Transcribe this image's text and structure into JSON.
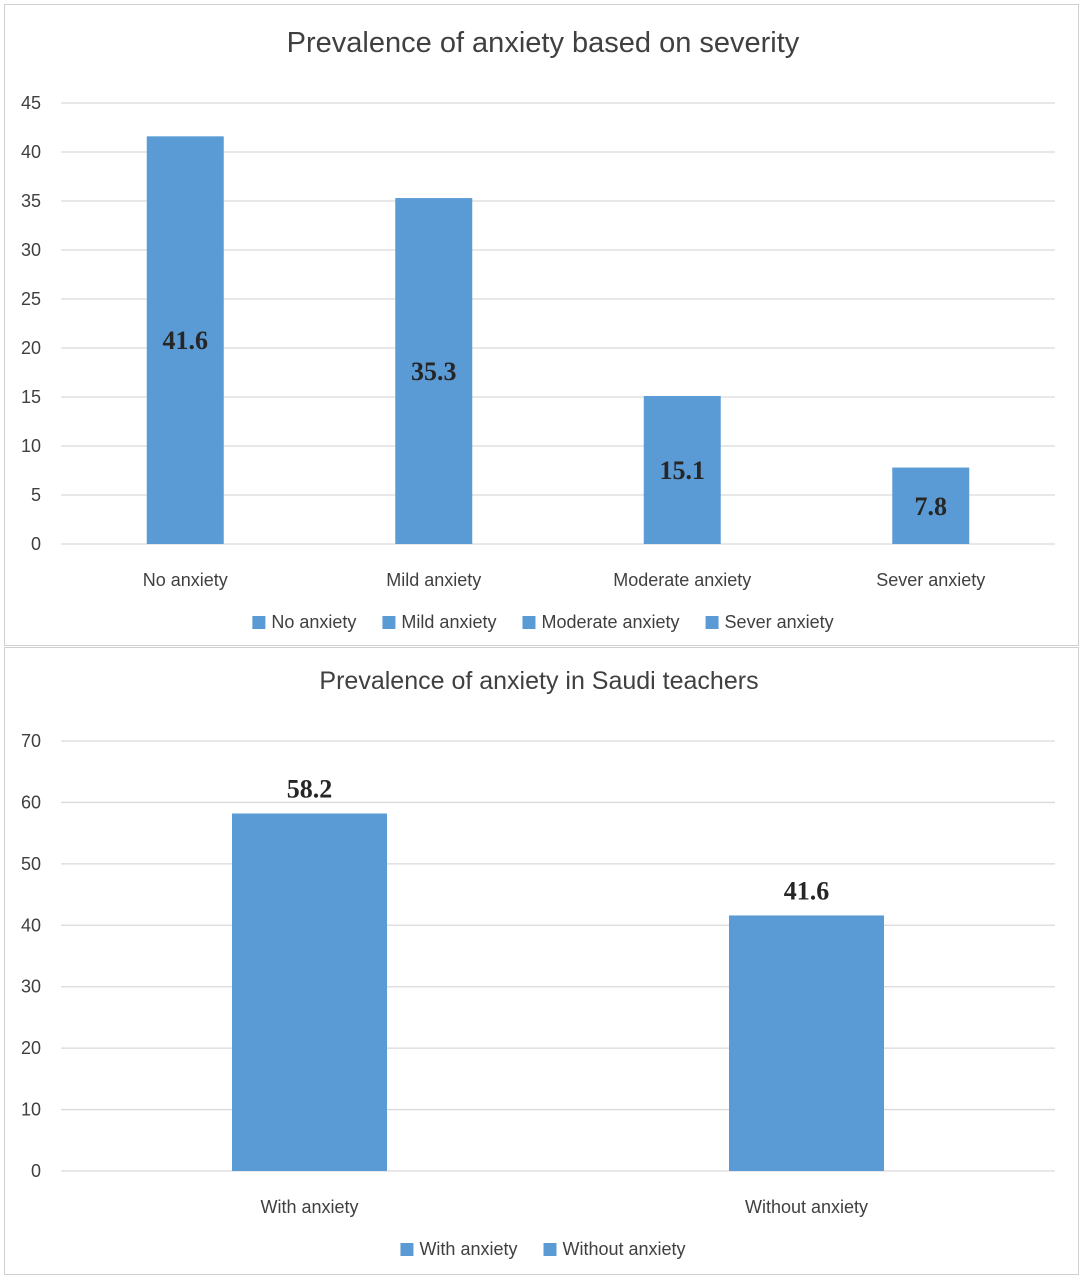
{
  "chart_data": [
    {
      "type": "bar",
      "title": "Prevalence of anxiety based on severity",
      "categories": [
        "No anxiety",
        "Mild anxiety",
        "Moderate anxiety",
        "Sever anxiety"
      ],
      "values": [
        41.6,
        35.3,
        15.1,
        7.8
      ],
      "data_labels": [
        "41.6",
        "35.3",
        "15.1",
        "7.8"
      ],
      "yticks": [
        "0",
        "5",
        "10",
        "15",
        "20",
        "25",
        "30",
        "35",
        "40",
        "45"
      ],
      "ylim": [
        0,
        45
      ],
      "label_position": "inside",
      "legend": [
        "No anxiety",
        "Mild anxiety",
        "Moderate anxiety",
        "Sever anxiety"
      ],
      "legend_position": "bottom",
      "grid": true,
      "bar_color": "#5b9bd5"
    },
    {
      "type": "bar",
      "title": "Prevalence of anxiety in Saudi teachers",
      "categories": [
        "With anxiety",
        "Without anxiety"
      ],
      "values": [
        58.2,
        41.6
      ],
      "data_labels": [
        "58.2",
        "41.6"
      ],
      "yticks": [
        "0",
        "10",
        "20",
        "30",
        "40",
        "50",
        "60",
        "70"
      ],
      "ylim": [
        0,
        70
      ],
      "label_position": "above",
      "legend": [
        "With anxiety",
        "Without anxiety"
      ],
      "legend_position": "bottom",
      "grid": true,
      "bar_color": "#5b9bd5"
    }
  ]
}
